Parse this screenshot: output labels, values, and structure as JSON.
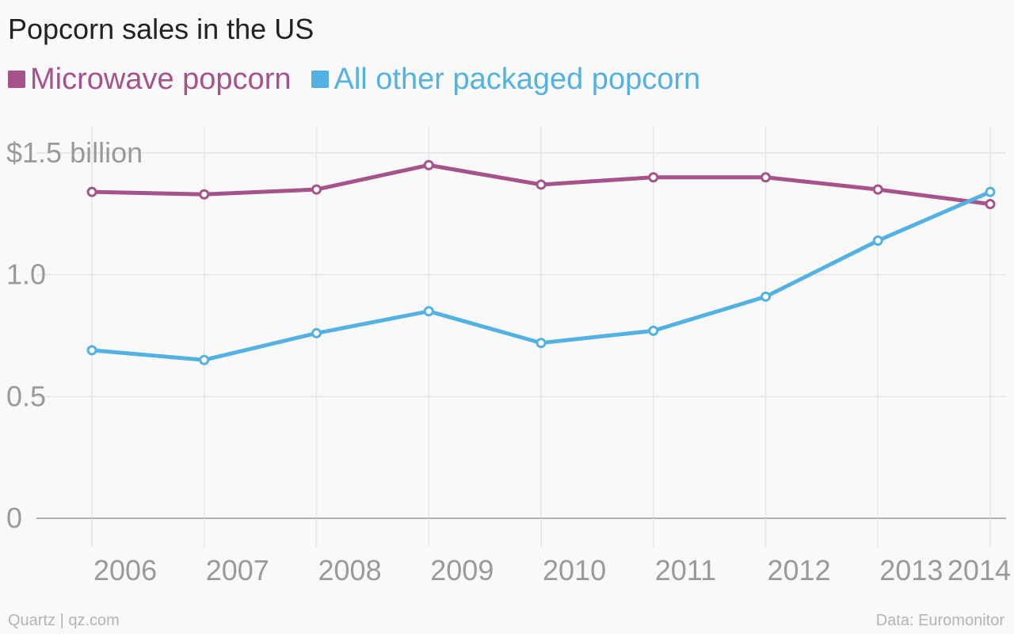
{
  "title": "Popcorn sales in the US",
  "legend": [
    {
      "label": "Microwave popcorn",
      "color": "#a6538b"
    },
    {
      "label": "All other packaged popcorn",
      "color": "#53b2e1"
    }
  ],
  "footer": {
    "source_left": "Quartz | qz.com",
    "source_right": "Data: Euromonitor"
  },
  "colors": {
    "background": "#f9f9f9",
    "grid": "#e6e6e6",
    "baseline": "#999999",
    "tick_text": "#9a9a9a"
  },
  "chart_data": {
    "type": "line",
    "title": "Popcorn sales in the US",
    "x": [
      "2006",
      "2007",
      "2008",
      "2009",
      "2010",
      "2011",
      "2012",
      "2013",
      "2014"
    ],
    "y_ticks": [
      {
        "value": 0,
        "label": "0"
      },
      {
        "value": 0.5,
        "label": "0.5"
      },
      {
        "value": 1.0,
        "label": "1.0"
      },
      {
        "value": 1.5,
        "label": "$1.5 billion"
      }
    ],
    "ylim": [
      0,
      1.5
    ],
    "grid": true,
    "legend_position": "top-left",
    "series": [
      {
        "name": "Microwave popcorn",
        "color": "#a6538b",
        "values": [
          1.34,
          1.33,
          1.35,
          1.45,
          1.37,
          1.4,
          1.4,
          1.35,
          1.29
        ]
      },
      {
        "name": "All other packaged popcorn",
        "color": "#53b2e1",
        "values": [
          0.69,
          0.65,
          0.76,
          0.85,
          0.72,
          0.77,
          0.91,
          1.14,
          1.34
        ]
      }
    ]
  }
}
